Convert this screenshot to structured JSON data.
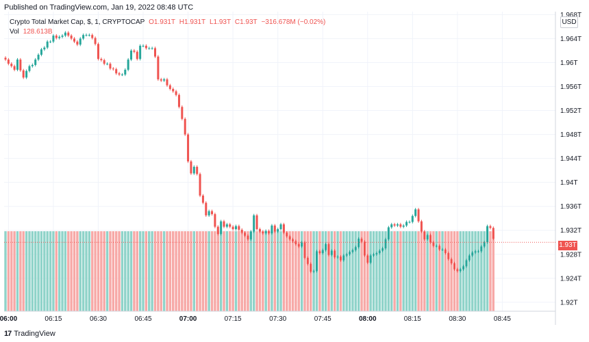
{
  "header": {
    "published": "Published on TradingView.com, Jan 19, 2022 08:48 UTC"
  },
  "legend": {
    "symbol": "Crypto Total Market Cap, $, 1, CRYPTOCAP",
    "open": "O1.931T",
    "high": "H1.931T",
    "low": "L1.93T",
    "close": "C1.93T",
    "change": "−316.678M (−0.02%)",
    "vol_label": "Vol",
    "vol_value": "128.613B"
  },
  "currency": "USD",
  "last_price_label": "1.93T",
  "footer": {
    "logo_text": "17",
    "brand": "TradingView"
  },
  "colors": {
    "up": "#26a69a",
    "down": "#ef5350",
    "up_volume": "#8fd3c9",
    "down_volume": "#f7a9a7",
    "grid": "#f0f3fa",
    "axis_text": "#131722"
  },
  "chart_data": {
    "type": "candlestick",
    "title": "Crypto Total Market Cap, $, 1, CRYPTOCAP",
    "ylim": [
      1.9185,
      1.9685
    ],
    "y_ticks": [
      1.92,
      1.924,
      1.928,
      1.932,
      1.936,
      1.94,
      1.944,
      1.948,
      1.952,
      1.956,
      1.96,
      1.964,
      1.968
    ],
    "y_tick_labels": [
      "1.92T",
      "1.924T",
      "1.928T",
      "1.932T",
      "1.936T",
      "1.94T",
      "1.944T",
      "1.948T",
      "1.952T",
      "1.956T",
      "1.96T",
      "1.964T",
      "1.968T"
    ],
    "x_start_time": "05:59",
    "x_ticks": [
      {
        "label": "06:00",
        "minute": 1,
        "bold": true
      },
      {
        "label": "06:15",
        "minute": 16,
        "bold": false
      },
      {
        "label": "06:30",
        "minute": 31,
        "bold": false
      },
      {
        "label": "06:45",
        "minute": 46,
        "bold": false
      },
      {
        "label": "07:00",
        "minute": 61,
        "bold": true
      },
      {
        "label": "07:15",
        "minute": 76,
        "bold": false
      },
      {
        "label": "07:30",
        "minute": 91,
        "bold": false
      },
      {
        "label": "07:45",
        "minute": 106,
        "bold": false
      },
      {
        "label": "08:00",
        "minute": 121,
        "bold": true
      },
      {
        "label": "08:15",
        "minute": 136,
        "bold": false
      },
      {
        "label": "08:30",
        "minute": 151,
        "bold": false
      },
      {
        "label": "08:45",
        "minute": 166,
        "bold": false
      }
    ],
    "closes": [
      1.9605,
      1.9598,
      1.9594,
      1.9588,
      1.9605,
      1.9587,
      1.9575,
      1.9586,
      1.9594,
      1.9596,
      1.9605,
      1.9613,
      1.9622,
      1.9625,
      1.9635,
      1.9635,
      1.9645,
      1.9641,
      1.9643,
      1.9645,
      1.965,
      1.9645,
      1.964,
      1.9635,
      1.963,
      1.964,
      1.9646,
      1.9646,
      1.9646,
      1.9641,
      1.9631,
      1.9606,
      1.9604,
      1.9598,
      1.9598,
      1.959,
      1.9589,
      1.9582,
      1.958,
      1.958,
      1.9588,
      1.9605,
      1.962,
      1.9618,
      1.9606,
      1.9628,
      1.9628,
      1.9624,
      1.9624,
      1.9624,
      1.961,
      1.9572,
      1.957,
      1.9572,
      1.9562,
      1.9556,
      1.9552,
      1.9546,
      1.9526,
      1.9506,
      1.948,
      1.9435,
      1.9415,
      1.9426,
      1.9414,
      1.9378,
      1.9366,
      1.9345,
      1.9352,
      1.9347,
      1.9326,
      1.9314,
      1.9335,
      1.9326,
      1.933,
      1.9326,
      1.9322,
      1.9327,
      1.9321,
      1.9316,
      1.9311,
      1.9305,
      1.9318,
      1.9345,
      1.9322,
      1.9318,
      1.9315,
      1.9319,
      1.9315,
      1.9328,
      1.9318,
      1.9322,
      1.933,
      1.9316,
      1.931,
      1.9305,
      1.9302,
      1.9297,
      1.9293,
      1.93,
      1.9274,
      1.9264,
      1.9251,
      1.9252,
      1.9285,
      1.9282,
      1.9287,
      1.9297,
      1.9279,
      1.9286,
      1.9275,
      1.9276,
      1.927,
      1.9278,
      1.928,
      1.9284,
      1.9287,
      1.9292,
      1.9306,
      1.9301,
      1.9278,
      1.9266,
      1.9278,
      1.928,
      1.9282,
      1.9286,
      1.929,
      1.9305,
      1.9325,
      1.933,
      1.9328,
      1.933,
      1.9326,
      1.9328,
      1.9334,
      1.9334,
      1.9344,
      1.9355,
      1.9335,
      1.9318,
      1.9305,
      1.9312,
      1.93,
      1.9294,
      1.9294,
      1.9288,
      1.9288,
      1.9282,
      1.9272,
      1.9265,
      1.9255,
      1.9252,
      1.9255,
      1.926,
      1.927,
      1.9278,
      1.9283,
      1.9285,
      1.9285,
      1.9293,
      1.93,
      1.9327,
      1.9324,
      1.9306
    ],
    "volumes_relative": [
      1,
      1,
      1,
      1,
      1,
      1,
      1,
      1,
      1,
      1,
      1,
      1,
      1,
      1,
      1,
      1,
      1,
      1,
      1,
      1,
      1,
      1,
      1,
      1,
      1,
      1,
      1,
      1,
      1,
      1,
      1,
      1,
      1,
      1,
      1,
      1,
      1,
      1,
      1,
      1,
      1,
      1,
      1,
      1,
      1,
      1,
      1,
      1,
      1,
      1,
      1,
      1,
      1,
      1,
      1,
      1,
      1,
      1,
      1,
      1,
      1,
      1,
      1,
      1,
      1,
      1,
      1,
      1,
      1,
      1,
      1,
      1,
      1,
      1,
      1,
      1,
      1,
      1,
      1,
      1,
      1,
      1,
      1,
      1,
      1,
      1,
      1,
      1,
      1,
      1,
      1,
      1,
      1,
      1,
      1,
      1,
      1,
      1,
      1,
      1,
      1,
      1,
      1,
      1,
      1,
      1,
      1,
      1,
      1,
      1,
      1,
      1,
      1,
      1,
      1,
      1,
      1,
      1,
      1,
      1,
      1,
      1,
      1,
      1,
      1,
      1,
      1,
      1,
      1,
      1,
      1,
      1,
      1,
      1,
      1,
      1,
      1,
      1,
      1,
      1,
      1,
      1,
      1,
      1,
      1,
      1,
      1,
      1,
      1,
      1,
      1,
      1,
      1,
      1,
      1,
      1,
      1,
      1,
      1,
      1,
      1,
      1,
      1,
      1,
      1,
      1,
      1,
      1,
      1
    ],
    "last_price": 1.93,
    "grid": true,
    "legend_position": "top-left"
  }
}
